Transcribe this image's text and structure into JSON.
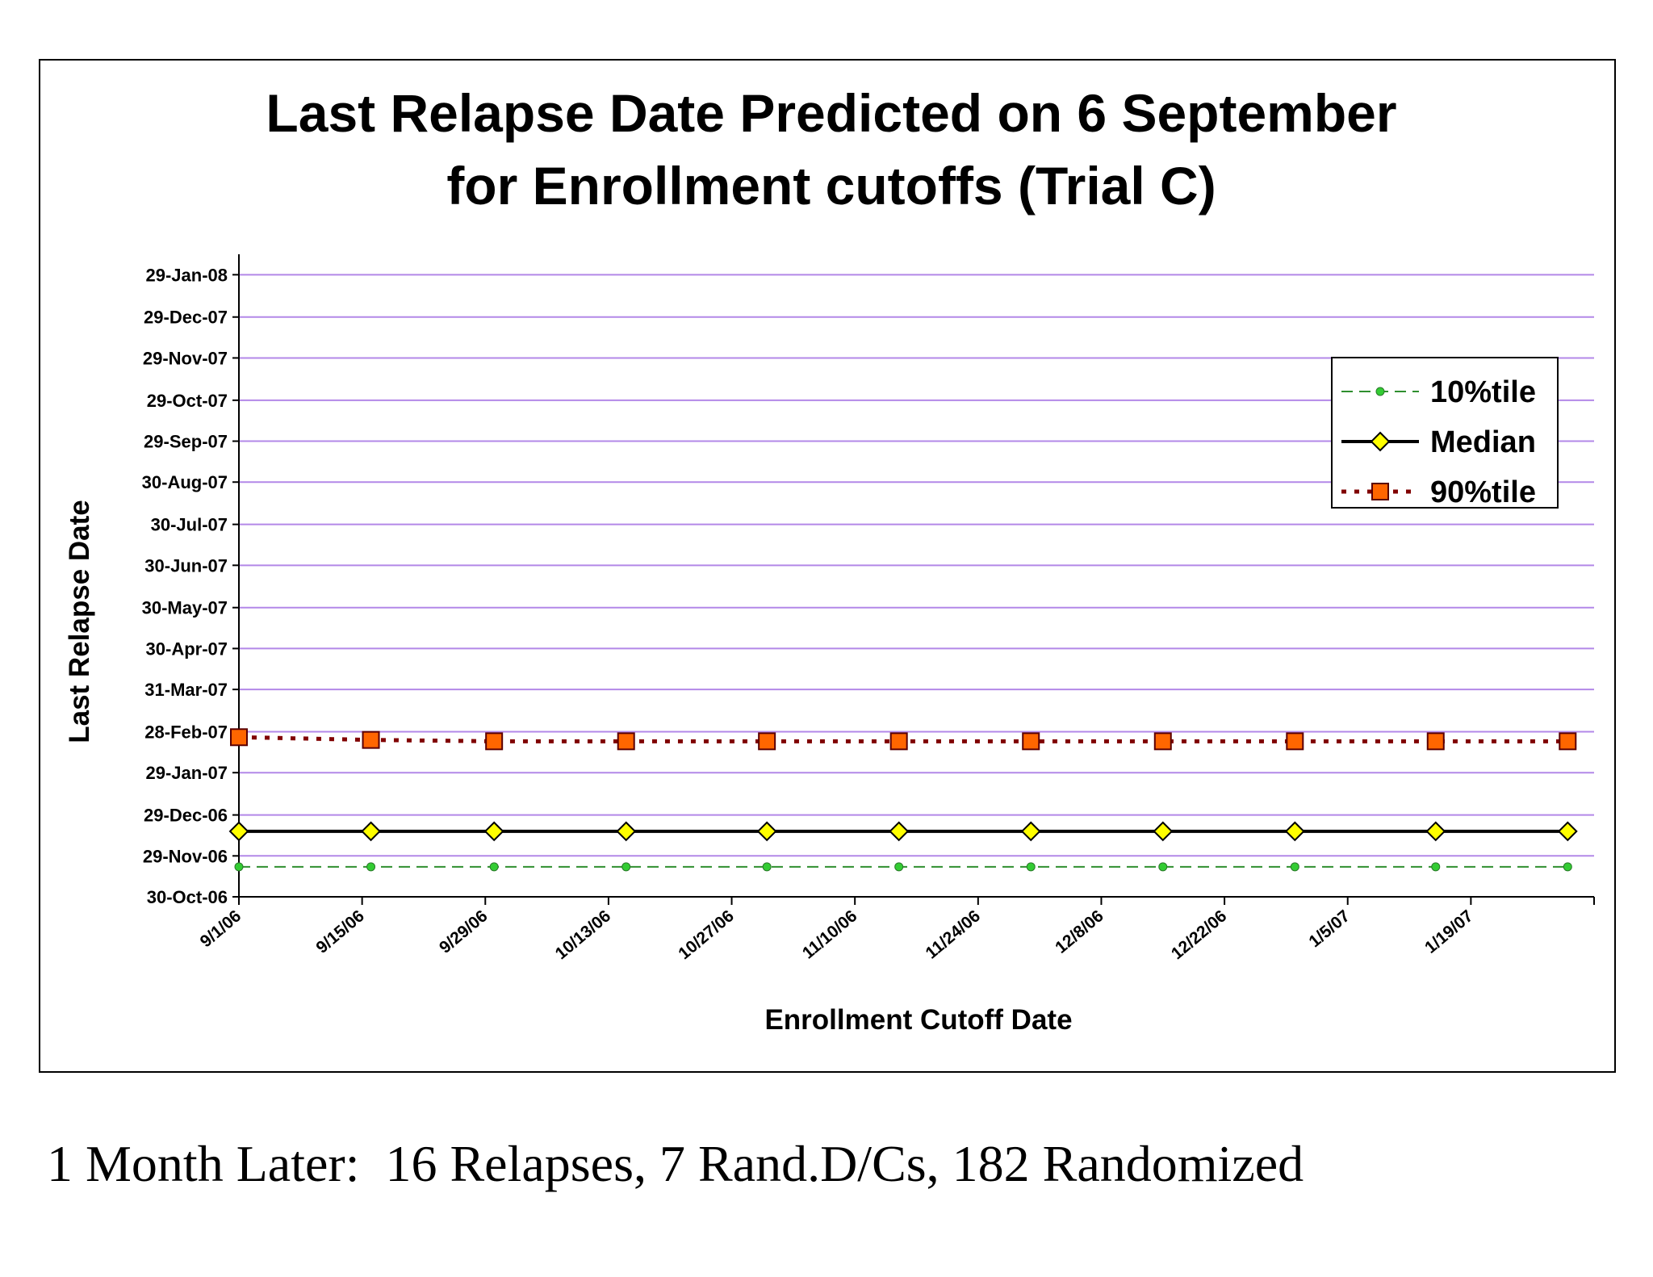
{
  "caption": "1 Month Later:  16 Relapses, 7 Rand.D/Cs, 182 Randomized",
  "chart_data": {
    "type": "line",
    "title_lines": [
      "Last Relapse Date Predicted on 6 September",
      "for Enrollment cutoffs (Trial C)"
    ],
    "xlabel": "Enrollment Cutoff Date",
    "ylabel": "Last Relapse Date",
    "x_tick_labels": [
      "9/1/06",
      "9/15/06",
      "9/29/06",
      "10/13/06",
      "10/27/06",
      "11/10/06",
      "11/24/06",
      "12/8/06",
      "12/22/06",
      "1/5/07",
      "1/19/07"
    ],
    "x_range": [
      "2006-09-01",
      "2007-02-02"
    ],
    "x_tick_step_days": 14,
    "y_tick_labels": [
      "30-Oct-06",
      "29-Nov-06",
      "29-Dec-06",
      "29-Jan-07",
      "28-Feb-07",
      "31-Mar-07",
      "30-Apr-07",
      "30-May-07",
      "30-Jun-07",
      "30-Jul-07",
      "30-Aug-07",
      "29-Sep-07",
      "29-Oct-07",
      "29-Nov-07",
      "29-Dec-07",
      "29-Jan-08"
    ],
    "y_range": [
      "2006-10-30",
      "2008-02-13"
    ],
    "grid": true,
    "legend_position": "top-right",
    "x": [
      "2006-09-01",
      "2006-09-16",
      "2006-09-30",
      "2006-10-15",
      "2006-10-31",
      "2006-11-15",
      "2006-11-30",
      "2006-12-15",
      "2006-12-30",
      "2007-01-15",
      "2007-01-30"
    ],
    "series": [
      {
        "name": "10%tile",
        "color": "#2f8f2f",
        "marker_color": "#33cc33",
        "marker": "circle",
        "line": "dashed",
        "values": [
          "2006-11-21",
          "2006-11-21",
          "2006-11-21",
          "2006-11-21",
          "2006-11-21",
          "2006-11-21",
          "2006-11-21",
          "2006-11-21",
          "2006-11-21",
          "2006-11-21",
          "2006-11-21"
        ]
      },
      {
        "name": "Median",
        "color": "#000000",
        "marker_color": "#ffff00",
        "marker": "diamond",
        "line": "solid",
        "values": [
          "2006-12-17",
          "2006-12-17",
          "2006-12-17",
          "2006-12-17",
          "2006-12-17",
          "2006-12-17",
          "2006-12-17",
          "2006-12-17",
          "2006-12-17",
          "2006-12-17",
          "2006-12-17"
        ]
      },
      {
        "name": "90%tile",
        "color": "#800000",
        "marker_color": "#ff6600",
        "marker": "square",
        "line": "dotted",
        "values": [
          "2007-02-24",
          "2007-02-22",
          "2007-02-21",
          "2007-02-21",
          "2007-02-21",
          "2007-02-21",
          "2007-02-21",
          "2007-02-21",
          "2007-02-21",
          "2007-02-21",
          "2007-02-21"
        ]
      }
    ],
    "grid_color": "#b388e8"
  }
}
